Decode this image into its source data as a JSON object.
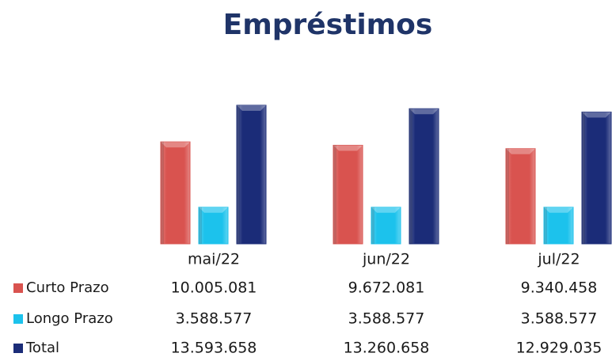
{
  "chart_data": {
    "type": "bar",
    "title": "Empréstimos",
    "categories": [
      "mai/22",
      "jun/22",
      "jul/22"
    ],
    "series": [
      {
        "name": "Curto Prazo",
        "color": "#d9534f",
        "values": [
          10005081,
          9672081,
          9340458
        ],
        "value_labels": [
          "10.005.081",
          "9.672.081",
          "9.340.458"
        ]
      },
      {
        "name": "Longo Prazo",
        "color": "#1cc2ec",
        "values": [
          3588577,
          3588577,
          3588577
        ],
        "value_labels": [
          "3.588.577",
          "3.588.577",
          "3.588.577"
        ]
      },
      {
        "name": "Total",
        "color": "#1b2c78",
        "values": [
          13593658,
          13260658,
          12929035
        ],
        "value_labels": [
          "13.593.658",
          "13.260.658",
          "12.929.035"
        ]
      }
    ]
  }
}
